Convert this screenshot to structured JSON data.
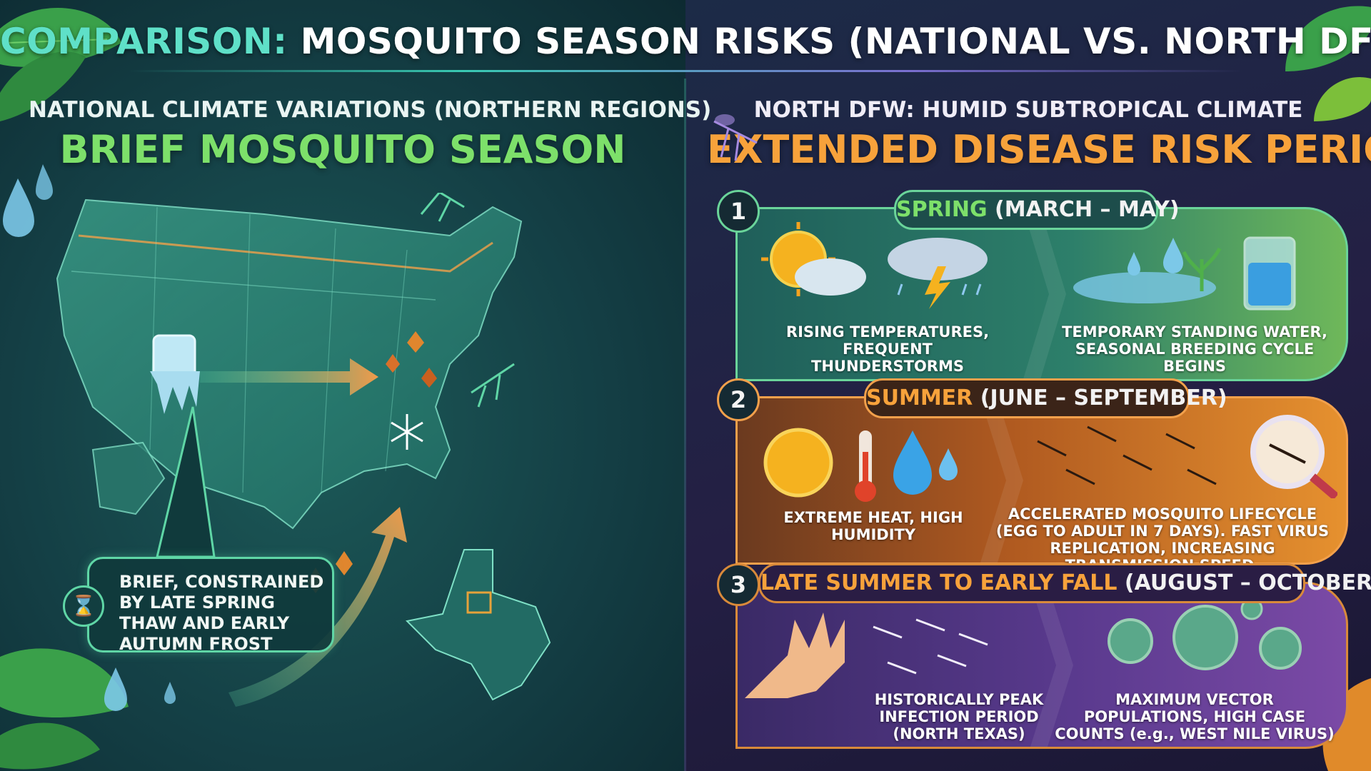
{
  "title": {
    "accent": "COMPARISON:",
    "rest": "MOSQUITO SEASON RISKS (NATIONAL VS. NORTH DFW)"
  },
  "left": {
    "subtitle": "NATIONAL CLIMATE VARIATIONS (NORTHERN REGIONS)",
    "heading": "BRIEF MOSQUITO SEASON",
    "callout": "BRIEF, CONSTRAINED BY LATE SPRING THAW AND EARLY AUTUMN FROST"
  },
  "right": {
    "subtitle": "NORTH DFW: HUMID SUBTROPICAL CLIMATE",
    "heading": "EXTENDED DISEASE RISK PERIOD",
    "seasons": [
      {
        "number": "1",
        "name": "SPRING",
        "range": "(MARCH – MAY)",
        "left_caption": "RISING TEMPERATURES, FREQUENT THUNDERSTORMS",
        "right_caption": "TEMPORARY STANDING WATER, SEASONAL BREEDING CYCLE BEGINS"
      },
      {
        "number": "2",
        "name": "SUMMER",
        "range": "(JUNE – SEPTEMBER)",
        "left_caption": "EXTREME HEAT, HIGH HUMIDITY",
        "right_caption": "ACCELERATED MOSQUITO LIFECYCLE (EGG TO ADULT IN 7 DAYS). FAST VIRUS REPLICATION, INCREASING TRANSMISSION SPEED."
      },
      {
        "number": "3",
        "name": "LATE SUMMER TO EARLY FALL",
        "range": "(AUGUST – OCTOBER)",
        "left_caption": "HISTORICALLY PEAK INFECTION PERIOD (NORTH TEXAS)",
        "right_caption": "MAXIMUM VECTOR POPULATIONS, HIGH CASE COUNTS (e.g., WEST NILE VIRUS)"
      }
    ]
  },
  "colors": {
    "accent_teal": "#5fe0c8",
    "green_heading": "#7de06a",
    "orange_heading": "#f7a23b",
    "spring_border": "#6ad49a",
    "summer_border": "#f2a04b",
    "fall_border": "#d98a3a"
  },
  "icons": [
    "leaf-icon",
    "water-drop-icon",
    "mosquito-icon",
    "ice-cube-icon",
    "autumn-leaf-icon",
    "snowflake-icon",
    "hourglass-icon",
    "sun-icon",
    "cloud-icon",
    "thunderstorm-icon",
    "puddle-icon",
    "water-glass-icon",
    "thermometer-icon",
    "magnifier-icon",
    "hand-icon",
    "virus-icon"
  ]
}
